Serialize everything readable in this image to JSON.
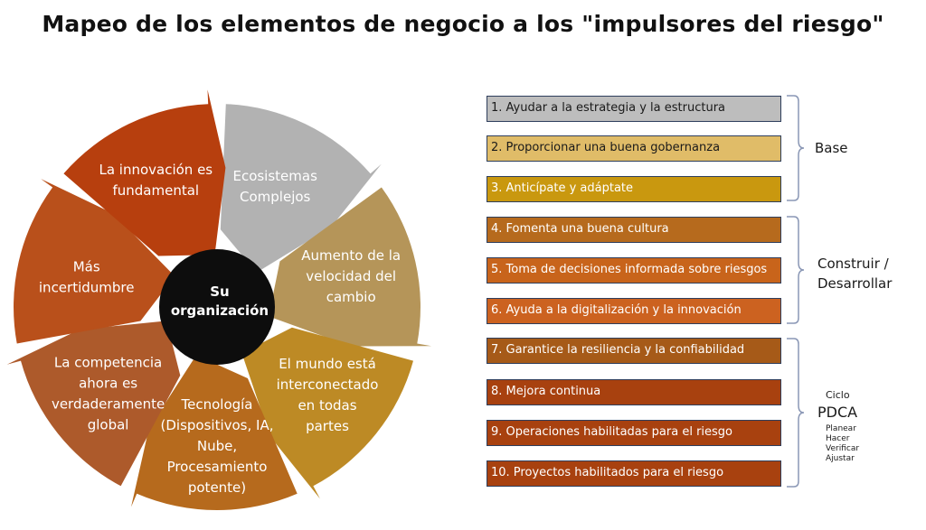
{
  "title": "Mapeo de los elementos de negocio a los \"impulsores del riesgo\"",
  "center": {
    "line1": "Su",
    "line2": "organización"
  },
  "segments": [
    {
      "lines": [
        "Ecosistemas",
        "Complejos"
      ],
      "color": "#b2b2b2"
    },
    {
      "lines": [
        "Aumento de la",
        "velocidad del",
        "cambio"
      ],
      "color": "#b59559"
    },
    {
      "lines": [
        "El mundo está",
        "interconectado",
        "en todas",
        "partes"
      ],
      "color": "#bd8a25"
    },
    {
      "lines": [
        "Tecnología",
        "(Dispositivos, IA,",
        "Nube,",
        "Procesamiento",
        "potente)"
      ],
      "color": "#b66a1d"
    },
    {
      "lines": [
        "La competencia",
        "ahora es",
        "verdaderamente",
        "global"
      ],
      "color": "#ad5a2b"
    },
    {
      "lines": [
        "Más",
        "incertidumbre"
      ],
      "color": "#b9501b"
    },
    {
      "lines": [
        "La innovación es",
        "fundamental"
      ],
      "color": "#b73f0e"
    }
  ],
  "items": [
    {
      "label": "1. Ayudar a la estrategia y la estructura",
      "color": "#bdbdbd",
      "text_color": "#1a1a1a"
    },
    {
      "label": "2. Proporcionar una buena gobernanza",
      "color": "#e0bc68",
      "text_color": "#1a1a1a"
    },
    {
      "label": "3. Anticípate y adáptate",
      "color": "#c9980f",
      "text_color": "#ffffff"
    },
    {
      "label": "4. Fomenta una buena cultura",
      "color": "#b66a1d",
      "text_color": "#ffffff"
    },
    {
      "label": "5. Toma de decisiones informada sobre riesgos",
      "color": "#c8641b",
      "text_color": "#ffffff"
    },
    {
      "label": "6. Ayuda a la digitalización y la innovación",
      "color": "#cc6220",
      "text_color": "#ffffff"
    },
    {
      "label": "7. Garantice la resiliencia y la confiabilidad",
      "color": "#a65a18",
      "text_color": "#ffffff"
    },
    {
      "label": "8. Mejora continua",
      "color": "#a8410f",
      "text_color": "#ffffff"
    },
    {
      "label": "9. Operaciones habilitadas para el riesgo",
      "color": "#a8410f",
      "text_color": "#ffffff"
    },
    {
      "label": "10. Proyectos habilitados para el riesgo",
      "color": "#a8410f",
      "text_color": "#ffffff"
    }
  ],
  "groups": {
    "base": "Base",
    "construir_1": "Construir /",
    "construir_2": "Desarrollar",
    "ciclo": "Ciclo",
    "pdca": "PDCA",
    "pdca_steps": [
      "Planear",
      "Hacer",
      "Verificar",
      "Ajustar"
    ]
  },
  "colors": {
    "center": "#0d0d0d",
    "brace": "#8a97b5"
  }
}
